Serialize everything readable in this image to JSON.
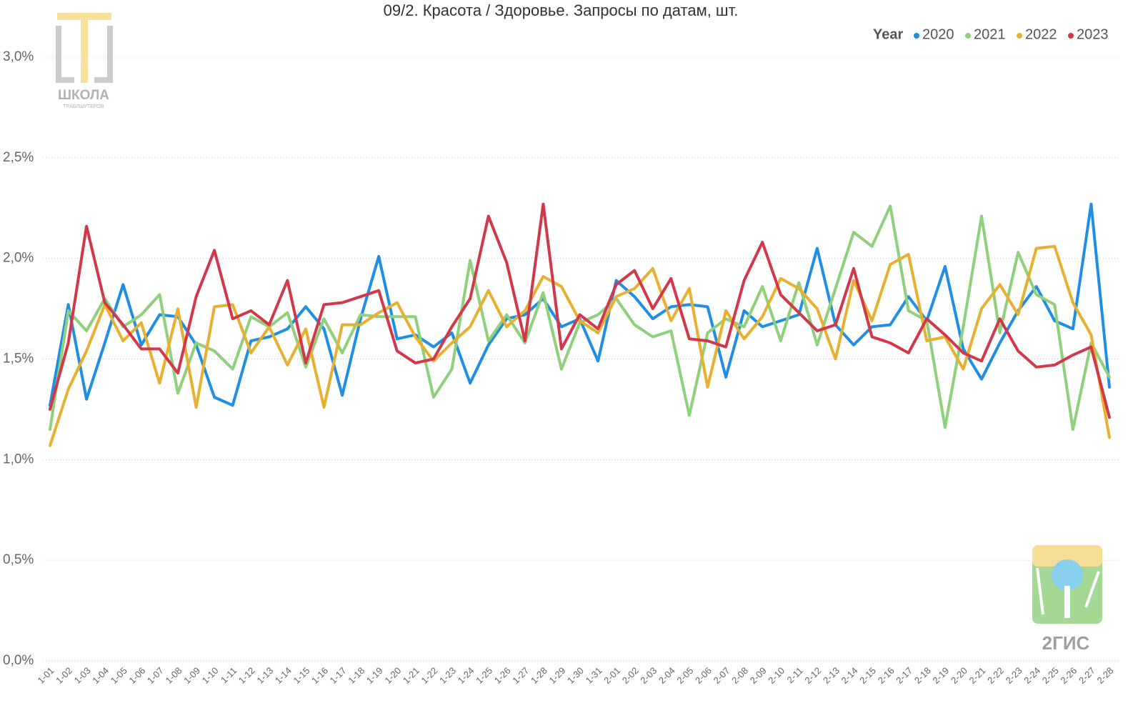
{
  "chart_data": {
    "type": "line",
    "title": "09/2. Красота / Здоровье. Запросы по датам, шт.",
    "legend_title": "Year",
    "legend_position": "top-right",
    "grid": true,
    "categories": [
      "1-01",
      "1-02",
      "1-03",
      "1-04",
      "1-05",
      "1-06",
      "1-07",
      "1-08",
      "1-09",
      "1-10",
      "1-11",
      "1-12",
      "1-13",
      "1-14",
      "1-15",
      "1-16",
      "1-17",
      "1-18",
      "1-19",
      "1-20",
      "1-21",
      "1-22",
      "1-23",
      "1-24",
      "1-25",
      "1-26",
      "1-27",
      "1-28",
      "1-29",
      "1-30",
      "1-31",
      "2-01",
      "2-02",
      "2-03",
      "2-04",
      "2-05",
      "2-06",
      "2-07",
      "2-08",
      "2-09",
      "2-10",
      "2-11",
      "2-12",
      "2-13",
      "2-14",
      "2-15",
      "2-16",
      "2-17",
      "2-18",
      "2-19",
      "2-20",
      "2-21",
      "2-22",
      "2-23",
      "2-24",
      "2-25",
      "2-26",
      "2-27",
      "2-28"
    ],
    "ylim": [
      0,
      3.2
    ],
    "yticks": [
      {
        "value": 0,
        "label": "0,0%"
      },
      {
        "value": 0.5,
        "label": "0,5%"
      },
      {
        "value": 1.0,
        "label": "1,0%"
      },
      {
        "value": 1.5,
        "label": "1,5%"
      },
      {
        "value": 2.0,
        "label": "2,0%"
      },
      {
        "value": 2.5,
        "label": "2,5%"
      },
      {
        "value": 3.0,
        "label": "3,0%"
      }
    ],
    "series": [
      {
        "name": "2020",
        "color": "#1f8fe6",
        "values": [
          1.27,
          1.77,
          1.3,
          1.58,
          1.87,
          1.57,
          1.72,
          1.71,
          1.57,
          1.31,
          1.27,
          1.59,
          1.61,
          1.65,
          1.76,
          1.65,
          1.32,
          1.7,
          2.01,
          1.6,
          1.62,
          1.56,
          1.63,
          1.38,
          1.57,
          1.7,
          1.72,
          1.8,
          1.66,
          1.7,
          1.49,
          1.89,
          1.81,
          1.7,
          1.76,
          1.77,
          1.76,
          1.41,
          1.74,
          1.66,
          1.69,
          1.72,
          2.05,
          1.67,
          1.57,
          1.66,
          1.67,
          1.81,
          1.69,
          1.96,
          1.55,
          1.4,
          1.58,
          1.74,
          1.86,
          1.69,
          1.65,
          2.27,
          1.36
        ]
      },
      {
        "name": "2021",
        "color": "#8fd07a",
        "values": [
          1.15,
          1.74,
          1.64,
          1.8,
          1.66,
          1.72,
          1.82,
          1.33,
          1.58,
          1.54,
          1.45,
          1.71,
          1.66,
          1.73,
          1.46,
          1.7,
          1.53,
          1.72,
          1.71,
          1.71,
          1.71,
          1.31,
          1.45,
          1.99,
          1.59,
          1.72,
          1.58,
          1.83,
          1.45,
          1.68,
          1.72,
          1.8,
          1.67,
          1.61,
          1.64,
          1.22,
          1.63,
          1.7,
          1.66,
          1.86,
          1.59,
          1.88,
          1.57,
          1.85,
          2.13,
          2.06,
          2.26,
          1.74,
          1.69,
          1.16,
          1.66,
          2.21,
          1.63,
          2.03,
          1.82,
          1.77,
          1.15,
          1.58,
          1.41
        ]
      },
      {
        "name": "2022",
        "color": "#e8b030",
        "values": [
          1.07,
          1.35,
          1.54,
          1.77,
          1.59,
          1.68,
          1.38,
          1.75,
          1.26,
          1.76,
          1.77,
          1.53,
          1.66,
          1.47,
          1.65,
          1.26,
          1.67,
          1.67,
          1.73,
          1.78,
          1.61,
          1.49,
          1.58,
          1.66,
          1.84,
          1.66,
          1.74,
          1.91,
          1.86,
          1.69,
          1.63,
          1.81,
          1.85,
          1.95,
          1.69,
          1.85,
          1.36,
          1.74,
          1.6,
          1.71,
          1.9,
          1.85,
          1.75,
          1.5,
          1.89,
          1.69,
          1.97,
          2.02,
          1.59,
          1.61,
          1.45,
          1.75,
          1.87,
          1.72,
          2.05,
          2.06,
          1.78,
          1.62,
          1.11
        ]
      },
      {
        "name": "2023",
        "color": "#d2384a",
        "values": [
          1.25,
          1.58,
          2.16,
          1.78,
          1.67,
          1.55,
          1.55,
          1.43,
          1.81,
          2.04,
          1.7,
          1.74,
          1.67,
          1.89,
          1.48,
          1.77,
          1.78,
          1.81,
          1.84,
          1.54,
          1.48,
          1.5,
          1.66,
          1.8,
          2.21,
          1.98,
          1.59,
          2.27,
          1.55,
          1.72,
          1.65,
          1.87,
          1.94,
          1.75,
          1.9,
          1.6,
          1.59,
          1.56,
          1.89,
          2.08,
          1.82,
          1.73,
          1.64,
          1.67,
          1.95,
          1.61,
          1.58,
          1.53,
          1.7,
          1.62,
          1.53,
          1.49,
          1.7,
          1.54,
          1.46,
          1.47,
          1.52,
          1.56,
          1.21
        ]
      }
    ]
  },
  "logos": {
    "school": "ШКОЛА",
    "school_sub": "ТРАБЛШУТЕРОВ",
    "brand": "2ГИС"
  }
}
